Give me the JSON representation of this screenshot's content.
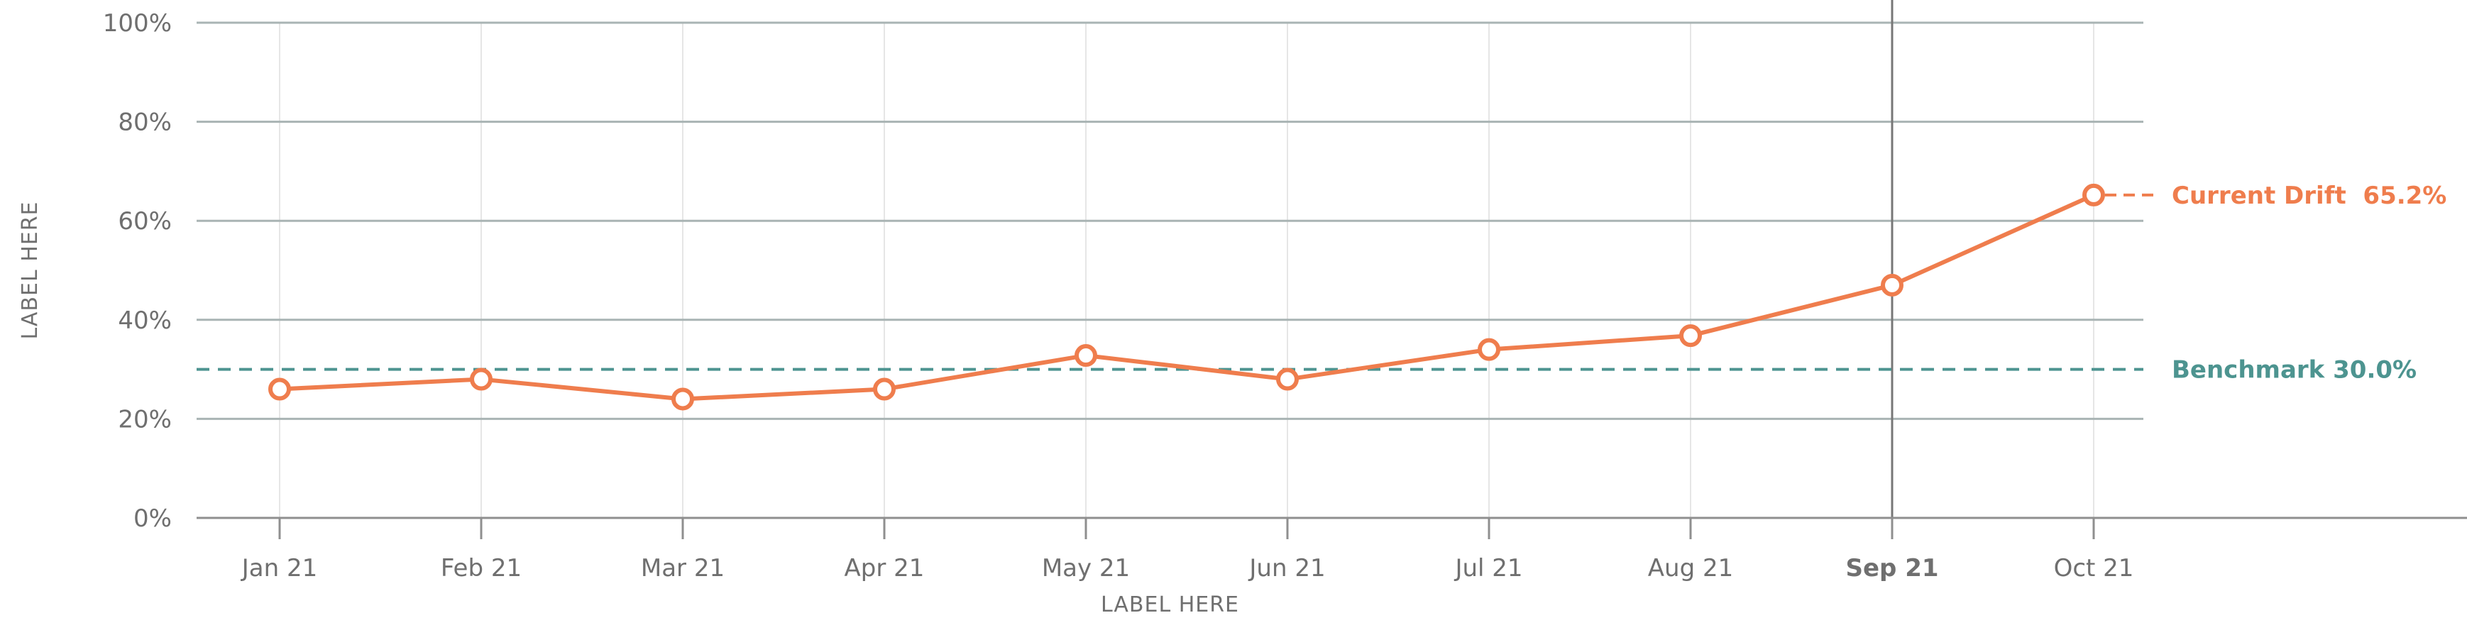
{
  "chart_data": {
    "type": "line",
    "title": "",
    "xlabel": "LABEL HERE",
    "ylabel": "LABEL HERE",
    "categories": [
      "Jan 21",
      "Feb 21",
      "Mar 21",
      "Apr 21",
      "May 21",
      "Jun 21",
      "Jul 21",
      "Aug 21",
      "Sep 21",
      "Oct 21"
    ],
    "series": [
      {
        "values": [
          26.0,
          28.0,
          24.0,
          26.0,
          32.8,
          28.0,
          34.0,
          36.8,
          47.0,
          65.2
        ]
      }
    ],
    "y_ticks": [
      "0%",
      "20%",
      "40%",
      "60%",
      "80%",
      "100%"
    ],
    "ylim": [
      0,
      100
    ],
    "highlighted_category": "Sep 21",
    "benchmark": {
      "label": "Benchmark 30.0%",
      "value": 30.0
    },
    "current_callout": {
      "label": "Current Drift  65.2%",
      "value": 65.2
    },
    "grid": true,
    "colors": {
      "series": "#ef7d4d",
      "benchmark": "#4d9490",
      "grid_major": "#a9b4b4",
      "grid_minor": "#e6e6e6",
      "highlight_line": "#777777",
      "axis": "#8f8f8f",
      "text": "#6f6f6f",
      "emphasis_text": "#555555"
    }
  }
}
